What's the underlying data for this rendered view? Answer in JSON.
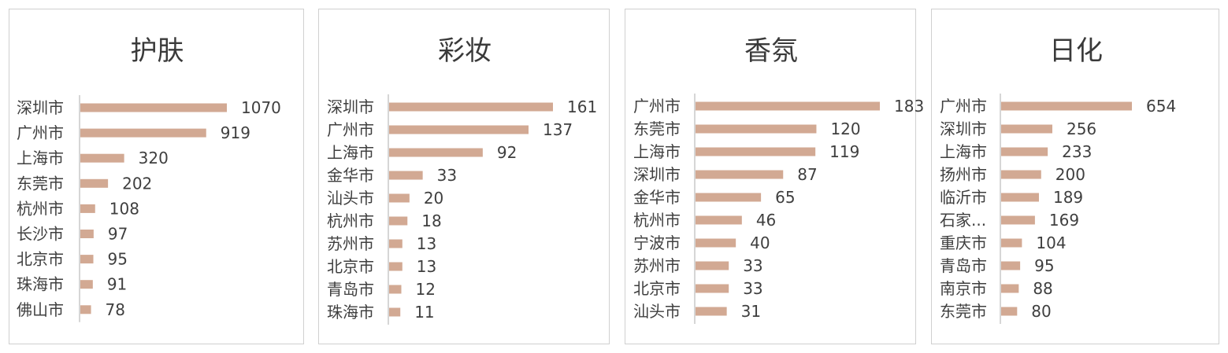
{
  "chart_data": [
    {
      "type": "bar",
      "orientation": "horizontal",
      "title": "护肤",
      "categories": [
        "深圳市",
        "广州市",
        "上海市",
        "东莞市",
        "杭州市",
        "长沙市",
        "北京市",
        "珠海市",
        "佛山市"
      ],
      "values": [
        1070,
        919,
        320,
        202,
        108,
        97,
        95,
        91,
        78
      ],
      "xlim": [
        0,
        1070
      ],
      "bar_color": "#d2a993",
      "grid": false,
      "legend": "none"
    },
    {
      "type": "bar",
      "orientation": "horizontal",
      "title": "彩妆",
      "categories": [
        "深圳市",
        "广州市",
        "上海市",
        "金华市",
        "汕头市",
        "杭州市",
        "苏州市",
        "北京市",
        "青岛市",
        "珠海市"
      ],
      "values": [
        161,
        137,
        92,
        33,
        20,
        18,
        13,
        13,
        12,
        11
      ],
      "xlim": [
        0,
        161
      ],
      "bar_color": "#d2a993",
      "grid": false,
      "legend": "none"
    },
    {
      "type": "bar",
      "orientation": "horizontal",
      "title": "香氛",
      "categories": [
        "广州市",
        "东莞市",
        "上海市",
        "深圳市",
        "金华市",
        "杭州市",
        "宁波市",
        "苏州市",
        "北京市",
        "汕头市"
      ],
      "values": [
        183,
        120,
        119,
        87,
        65,
        46,
        40,
        33,
        33,
        31
      ],
      "xlim": [
        0,
        183
      ],
      "bar_color": "#d2a993",
      "grid": false,
      "legend": "none"
    },
    {
      "type": "bar",
      "orientation": "horizontal",
      "title": "日化",
      "categories": [
        "广州市",
        "深圳市",
        "上海市",
        "扬州市",
        "临沂市",
        "石家...",
        "重庆市",
        "青岛市",
        "南京市",
        "东莞市"
      ],
      "values": [
        654,
        256,
        233,
        200,
        189,
        169,
        104,
        95,
        88,
        80
      ],
      "xlim": [
        0,
        654
      ],
      "bar_color": "#d2a993",
      "grid": false,
      "legend": "none"
    }
  ]
}
